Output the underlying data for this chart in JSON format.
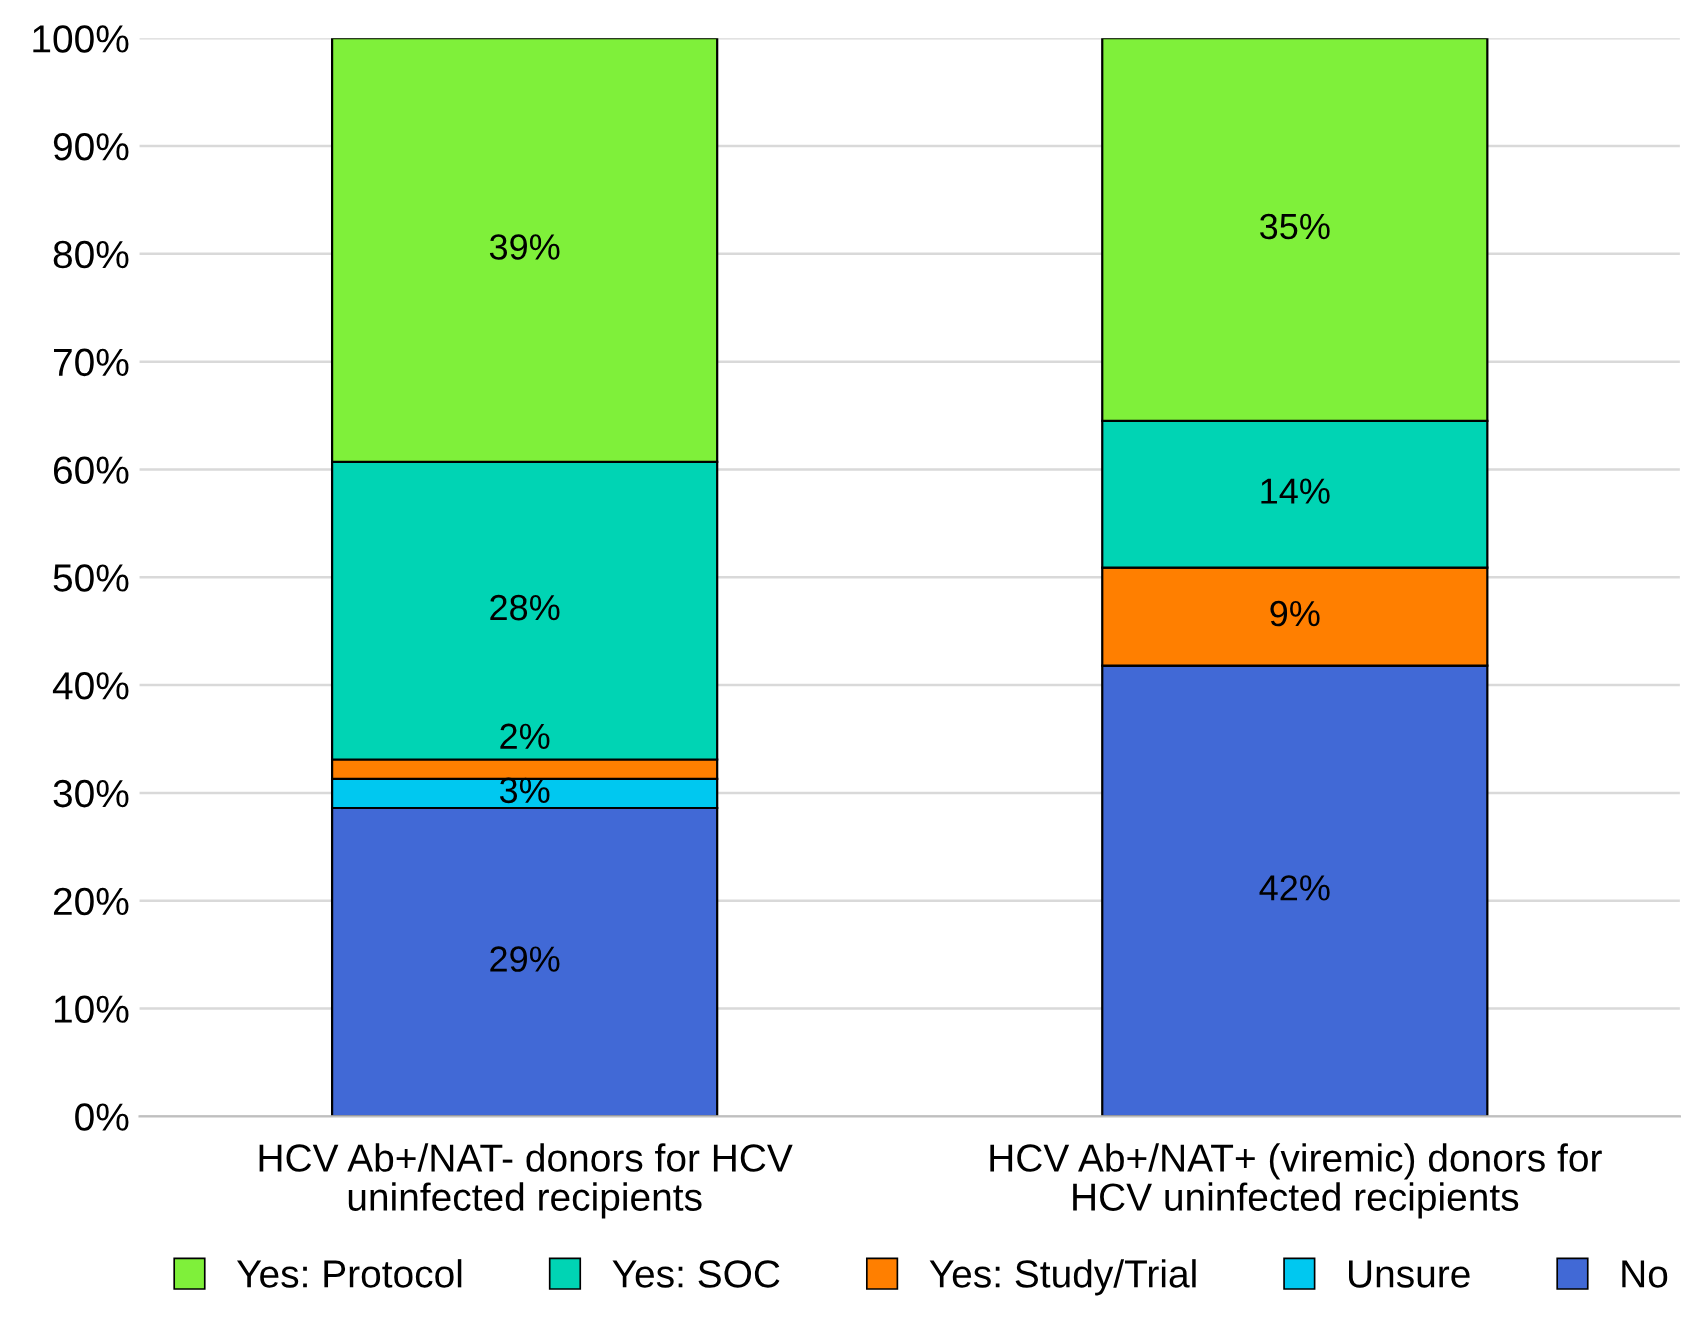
{
  "chart_data": {
    "type": "bar",
    "stacked": true,
    "categories": [
      "HCV Ab+/NAT- donors for HCV uninfected recipients",
      "HCV Ab+/NAT+ (viremic) donors for HCV uninfected recipients"
    ],
    "series": [
      {
        "name": "No",
        "color": "#4169d6",
        "values": [
          28.6,
          41.8
        ],
        "value_labels": [
          "29%",
          "42%"
        ]
      },
      {
        "name": "Unsure",
        "color": "#00c8f0",
        "values": [
          2.7,
          null
        ],
        "value_labels": [
          "3%",
          null
        ]
      },
      {
        "name": "Yes: Study/Trial",
        "color": "#ff7f00",
        "values": [
          1.8,
          9.1
        ],
        "value_labels": [
          "2%",
          "9%"
        ]
      },
      {
        "name": "Yes: SOC",
        "color": "#00d4b4",
        "values": [
          27.6,
          13.6
        ],
        "value_labels": [
          "28%",
          "14%"
        ]
      },
      {
        "name": "Yes: Protocol",
        "color": "#7ff03a",
        "values": [
          39.3,
          35.5
        ],
        "value_labels": [
          "39%",
          "35%"
        ]
      }
    ],
    "ylim": [
      0,
      100
    ],
    "yticks": [
      {
        "value": 0,
        "label": "0%"
      },
      {
        "value": 10,
        "label": "10%"
      },
      {
        "value": 20,
        "label": "20%"
      },
      {
        "value": 30,
        "label": "30%"
      },
      {
        "value": 40,
        "label": "40%"
      },
      {
        "value": 50,
        "label": "50%"
      },
      {
        "value": 60,
        "label": "60%"
      },
      {
        "value": 70,
        "label": "70%"
      },
      {
        "value": 80,
        "label": "80%"
      },
      {
        "value": 90,
        "label": "90%"
      },
      {
        "value": 100,
        "label": "100%"
      }
    ],
    "grid": "y",
    "legend": "bottom",
    "marker": "square"
  }
}
